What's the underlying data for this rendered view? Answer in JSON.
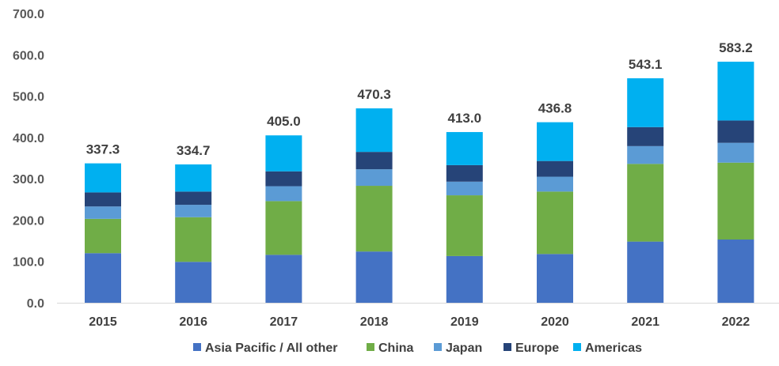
{
  "chart_data": {
    "type": "bar",
    "stacked": true,
    "title": "",
    "xlabel": "",
    "ylabel": "",
    "ylim": [
      0,
      700
    ],
    "yticks": [
      "0.0",
      "100.0",
      "200.0",
      "300.0",
      "400.0",
      "500.0",
      "600.0",
      "700.0"
    ],
    "grid": false,
    "legend_position": "bottom",
    "categories": [
      "2015",
      "2016",
      "2017",
      "2018",
      "2019",
      "2020",
      "2021",
      "2022"
    ],
    "totals": [
      "337.3",
      "334.7",
      "405.0",
      "470.3",
      "413.0",
      "436.8",
      "543.1",
      "583.2"
    ],
    "series": [
      {
        "name": "Asia Pacific / All other",
        "color": "#4472C4",
        "values": [
          120,
          99,
          116,
          124,
          113,
          118,
          148,
          153
        ]
      },
      {
        "name": "China",
        "color": "#70AD47",
        "values": [
          83,
          108,
          130,
          159,
          147,
          151,
          188,
          186
        ]
      },
      {
        "name": "Japan",
        "color": "#5B9BD5",
        "values": [
          30,
          30,
          36,
          40,
          33,
          36,
          43,
          48
        ]
      },
      {
        "name": "Europe",
        "color": "#264478",
        "values": [
          34,
          32,
          36,
          42,
          40,
          38,
          46,
          54
        ]
      },
      {
        "name": "Americas",
        "color": "#00B0F0",
        "values": [
          70.3,
          65.7,
          87,
          105.3,
          80,
          93.8,
          118.1,
          142.2
        ]
      }
    ]
  }
}
